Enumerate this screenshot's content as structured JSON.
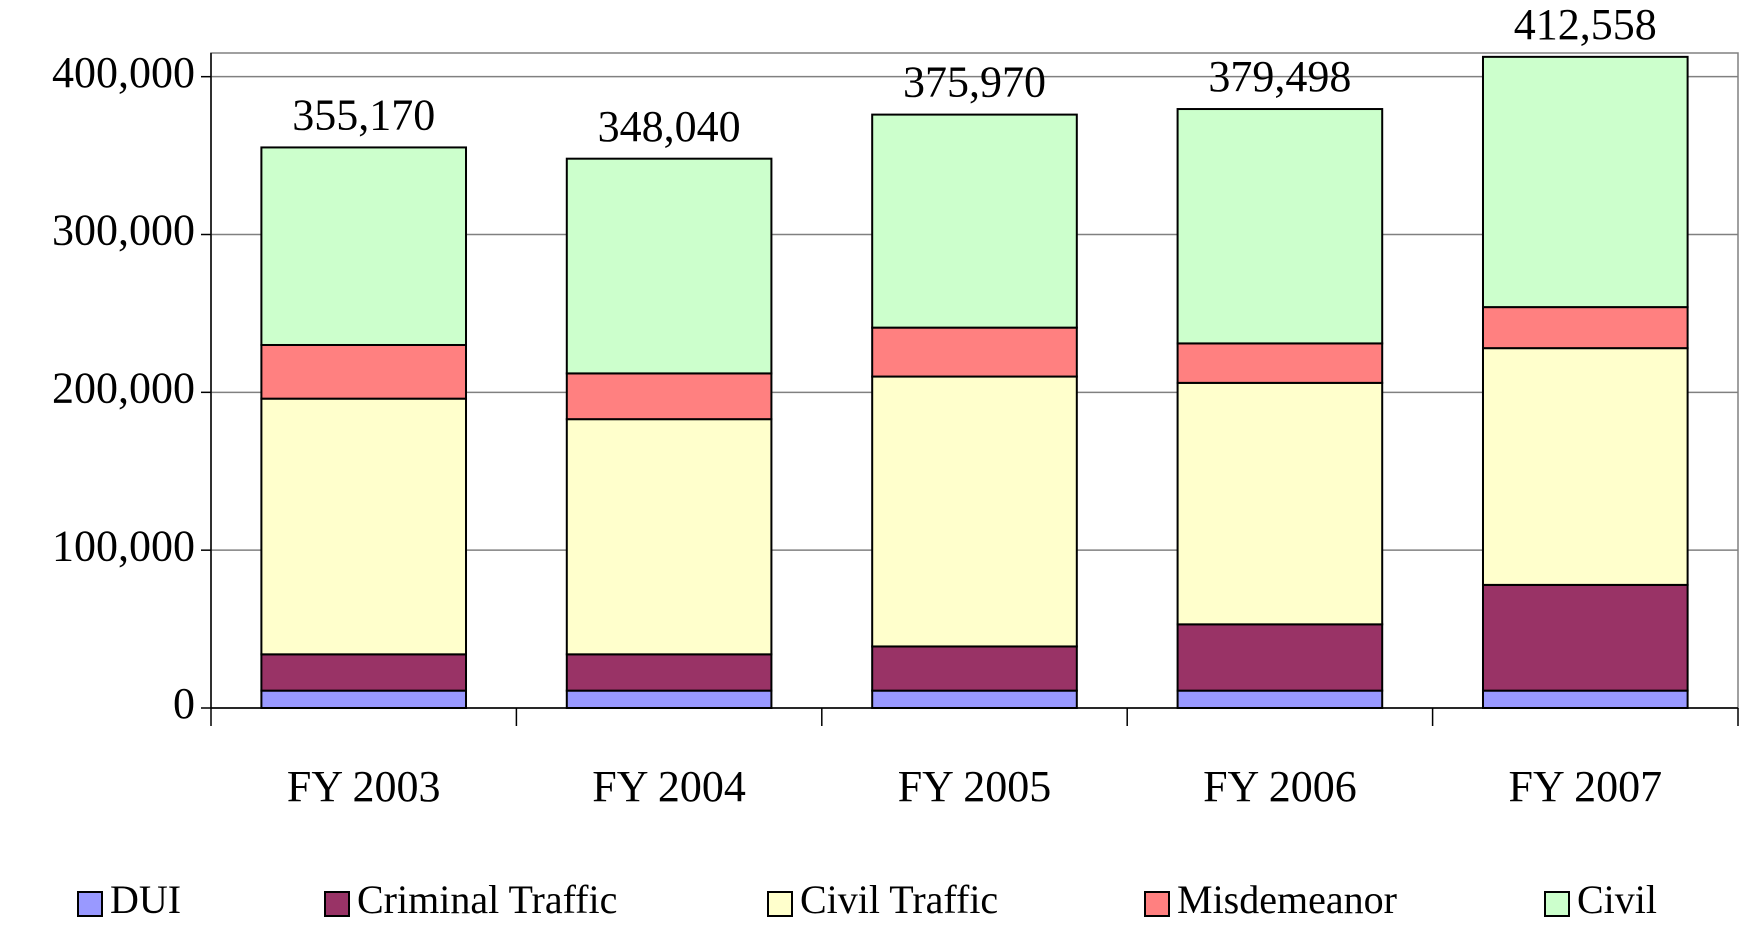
{
  "chart_data": {
    "type": "stacked_bar",
    "categories": [
      "FY 2003",
      "FY 2004",
      "FY 2005",
      "FY 2006",
      "FY 2007"
    ],
    "series": [
      {
        "name": "DUI",
        "color": "#9999ff",
        "values": [
          11000,
          11000,
          11000,
          11000,
          11000
        ]
      },
      {
        "name": "Criminal Traffic",
        "color": "#993366",
        "values": [
          23000,
          23000,
          28000,
          42000,
          67000
        ]
      },
      {
        "name": "Civil Traffic",
        "color": "#ffffcc",
        "values": [
          162000,
          149000,
          171000,
          153000,
          150000
        ]
      },
      {
        "name": "Misdemeanor",
        "color": "#ff8080",
        "values": [
          34000,
          29000,
          31000,
          25000,
          26000
        ]
      },
      {
        "name": "Civil",
        "color": "#ccffcc",
        "values": [
          125170,
          136040,
          134970,
          148498,
          158558
        ]
      }
    ],
    "totals": [
      355170,
      348040,
      375970,
      379498,
      412558
    ],
    "total_labels": [
      "355,170",
      "348,040",
      "375,970",
      "379,498",
      "412,558"
    ],
    "ylim": [
      0,
      415000
    ],
    "yticks": [
      0,
      {
        "value": 100000,
        "label": "100,000"
      },
      {
        "value": 200000,
        "label": "200,000"
      },
      {
        "value": 300000,
        "label": "300,000"
      },
      {
        "value": 400000,
        "label": "400,000"
      }
    ],
    "grid": true,
    "legend": "bottom"
  }
}
